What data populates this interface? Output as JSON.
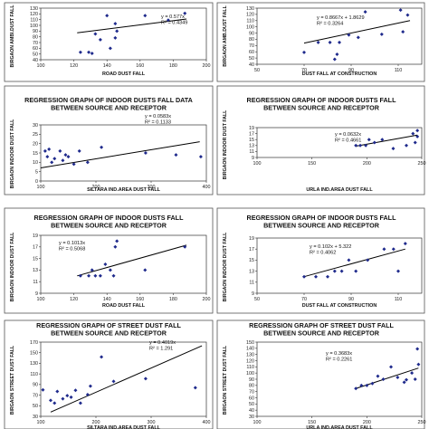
{
  "chart_data": [
    {
      "type": "scatter",
      "title": "",
      "xlabel": "ROAD DUST FALL",
      "ylabel": "BIRGAON AMBI.DUST FALL",
      "xlim": [
        100,
        200
      ],
      "ylim": [
        40,
        130
      ],
      "xticks": [
        "100",
        "120",
        "140",
        "160",
        "180",
        "200"
      ],
      "yticks": [
        "40",
        "50",
        "60",
        "70",
        "80",
        "90",
        "100",
        "110",
        "120",
        "130"
      ],
      "points": [
        [
          124,
          53
        ],
        [
          129,
          53
        ],
        [
          131,
          51
        ],
        [
          133,
          85
        ],
        [
          136,
          75
        ],
        [
          140,
          117
        ],
        [
          142,
          60
        ],
        [
          145,
          78
        ],
        [
          145,
          103
        ],
        [
          146,
          90
        ],
        [
          163,
          117
        ],
        [
          177,
          109
        ],
        [
          187,
          121
        ]
      ],
      "trendline": [
        [
          122,
          87
        ],
        [
          188,
          111
        ]
      ],
      "equation": "y = 0.577x",
      "r2": "R² = 0.4349"
    },
    {
      "type": "scatter",
      "title": "",
      "xlabel": "DUST FALL AT CONSTRUCTION",
      "ylabel": "BIRGAON AMB.DUST FALL",
      "xlim": [
        50,
        120
      ],
      "ylim": [
        40,
        130
      ],
      "xticks": [
        "50",
        "70",
        "90",
        "110"
      ],
      "yticks": [
        "40",
        "50",
        "60",
        "70",
        "80",
        "90",
        "100",
        "110",
        "120",
        "130"
      ],
      "points": [
        [
          70,
          59
        ],
        [
          76,
          75
        ],
        [
          81,
          75
        ],
        [
          83,
          48
        ],
        [
          84,
          56
        ],
        [
          85,
          75
        ],
        [
          89,
          87
        ],
        [
          93,
          83
        ],
        [
          96,
          124
        ],
        [
          103,
          88
        ],
        [
          111,
          127
        ],
        [
          112,
          92
        ],
        [
          114,
          119
        ]
      ],
      "trendline": [
        [
          70,
          74
        ],
        [
          115,
          110
        ]
      ],
      "equation": "y = 0.8667x + 1.8629",
      "r2": "R² = 0.3264"
    },
    {
      "type": "scatter",
      "title": "REGRESSION GRAPH OF INDOOR DUSTS FALL DATA BETWEEN SOURCE AND RECEPTOR",
      "xlabel": "SILTARA IND.AREA DUST FALL",
      "ylabel": "BIRGAON INDOOR DUST FALL",
      "xlim": [
        100,
        400
      ],
      "ylim": [
        0,
        30
      ],
      "xticks": [
        "100",
        "200",
        "300",
        "400"
      ],
      "yticks": [
        "0",
        "5",
        "10",
        "15",
        "20",
        "25",
        "30"
      ],
      "points": [
        [
          108,
          16
        ],
        [
          112,
          13
        ],
        [
          115,
          17
        ],
        [
          120,
          10
        ],
        [
          125,
          12
        ],
        [
          135,
          16
        ],
        [
          140,
          11
        ],
        [
          145,
          14
        ],
        [
          150,
          13
        ],
        [
          160,
          9
        ],
        [
          170,
          16
        ],
        [
          185,
          10
        ],
        [
          210,
          18
        ],
        [
          290,
          15
        ],
        [
          345,
          14
        ],
        [
          390,
          13
        ]
      ],
      "trendline": [
        [
          100,
          7
        ],
        [
          388,
          21
        ]
      ],
      "equation": "y = 0.0583x",
      "r2": "R² = 0.1133"
    },
    {
      "type": "scatter",
      "title": "REGRESSION GRAPH OF INDOOR DUSTS FALL BETWEEN SOURCE AND RECEPTOR",
      "xlabel": "URLA IND.AREA DUST FALL",
      "ylabel": "BIRGAON INDOOR DUST FALL",
      "xlim": [
        100,
        250
      ],
      "ylim": [
        9,
        19
      ],
      "xticks": [
        "100",
        "150",
        "200",
        "250"
      ],
      "yticks": [
        "9",
        "11",
        "13",
        "15",
        "17",
        "19"
      ],
      "points": [
        [
          190,
          13
        ],
        [
          194,
          13
        ],
        [
          199,
          13
        ],
        [
          202,
          15
        ],
        [
          207,
          14
        ],
        [
          214,
          15
        ],
        [
          224,
          12
        ],
        [
          236,
          13
        ],
        [
          242,
          17
        ],
        [
          246,
          18
        ],
        [
          246,
          16
        ],
        [
          244,
          14
        ]
      ],
      "trendline": [
        [
          190,
          12.8
        ],
        [
          246,
          16.5
        ]
      ],
      "equation": "y = 0.0632x",
      "r2": "R² = 0.4661"
    },
    {
      "type": "scatter",
      "title": "REGRESSION GRAPH OF INDOOR DUSTS FALL BETWEEN SOURCE AND RECEPTOR",
      "xlabel": "ROAD DUST FALL",
      "ylabel": "BIRGAON INDOOR DUST FALL",
      "xlim": [
        100,
        200
      ],
      "ylim": [
        9,
        19
      ],
      "xticks": [
        "100",
        "120",
        "140",
        "160",
        "180",
        "200"
      ],
      "yticks": [
        "9",
        "11",
        "13",
        "15",
        "17",
        "19"
      ],
      "points": [
        [
          124,
          12
        ],
        [
          129,
          12
        ],
        [
          131,
          13
        ],
        [
          133,
          12
        ],
        [
          136,
          12
        ],
        [
          139,
          14
        ],
        [
          142,
          13
        ],
        [
          144,
          12
        ],
        [
          145,
          17
        ],
        [
          146,
          18
        ],
        [
          163,
          13
        ],
        [
          187,
          17
        ]
      ],
      "trendline": [
        [
          122,
          12
        ],
        [
          188,
          17.3
        ]
      ],
      "equation": "y = 0.1013x",
      "r2": "R² = 0.5068"
    },
    {
      "type": "scatter",
      "title": "REGRESSION GRAPH OF INDOOR DUSTS FALL BETWEEN SOURCE AND RECEPTOR",
      "xlabel": "DUST FALL AT CONSTRUCTION",
      "ylabel": "BIRGAON INDOOR DUST FALL",
      "xlim": [
        50,
        120
      ],
      "ylim": [
        9,
        19
      ],
      "xticks": [
        "50",
        "70",
        "90",
        "110"
      ],
      "yticks": [
        "9",
        "11",
        "13",
        "15",
        "17",
        "19"
      ],
      "points": [
        [
          70,
          12
        ],
        [
          75,
          12
        ],
        [
          80,
          12
        ],
        [
          83,
          13
        ],
        [
          86,
          13
        ],
        [
          89,
          15
        ],
        [
          92,
          13
        ],
        [
          97,
          15
        ],
        [
          104,
          17
        ],
        [
          108,
          17
        ],
        [
          110,
          13
        ],
        [
          113,
          18
        ]
      ],
      "trendline": [
        [
          70,
          12
        ],
        [
          113,
          17
        ]
      ],
      "equation": "y = 0.102x + 5.322",
      "r2": "R² = 0.4062"
    },
    {
      "type": "scatter",
      "title": "REGRESSION GRAPH OF STREET DUST FALL BETWEEN SOURCE AND RECEPTOR",
      "xlabel": "SILTARA IND.AREA DUST FALL",
      "ylabel": "BIRGAON STREET DUST FALL",
      "xlim": [
        100,
        400
      ],
      "ylim": [
        30,
        170
      ],
      "xticks": [
        "100",
        "200",
        "300",
        "400"
      ],
      "yticks": [
        "30",
        "50",
        "70",
        "90",
        "110",
        "130",
        "150",
        "170"
      ],
      "points": [
        [
          104,
          80
        ],
        [
          118,
          60
        ],
        [
          125,
          55
        ],
        [
          130,
          77
        ],
        [
          140,
          63
        ],
        [
          148,
          69
        ],
        [
          155,
          66
        ],
        [
          163,
          79
        ],
        [
          172,
          55
        ],
        [
          185,
          71
        ],
        [
          190,
          87
        ],
        [
          210,
          142
        ],
        [
          232,
          96
        ],
        [
          290,
          101
        ],
        [
          380,
          84
        ]
      ],
      "trendline": [
        [
          118,
          38
        ],
        [
          392,
          163
        ]
      ],
      "equation": "y = 0.4019x",
      "r2": "R² = 1.291"
    },
    {
      "type": "scatter",
      "title": "REGRESSION GRAPH OF STREET DUST FALL BETWEEN SOURCE AND RECEPTOR",
      "xlabel": "URLA IND.AREA DUST FALL",
      "ylabel": "BIRGAON STREET DUST FALL",
      "xlim": [
        100,
        250
      ],
      "ylim": [
        30,
        150
      ],
      "xticks": [
        "100",
        "150",
        "200",
        "250"
      ],
      "yticks": [
        "30",
        "40",
        "50",
        "60",
        "70",
        "80",
        "90",
        "100",
        "110",
        "120",
        "130",
        "140",
        "150"
      ],
      "points": [
        [
          190,
          75
        ],
        [
          195,
          80
        ],
        [
          200,
          80
        ],
        [
          205,
          83
        ],
        [
          210,
          95
        ],
        [
          215,
          90
        ],
        [
          222,
          110
        ],
        [
          228,
          93
        ],
        [
          234,
          85
        ],
        [
          236,
          89
        ],
        [
          241,
          100
        ],
        [
          244,
          90
        ],
        [
          246,
          139
        ],
        [
          247,
          114
        ]
      ],
      "trendline": [
        [
          190,
          75
        ],
        [
          247,
          108
        ]
      ],
      "equation": "y = 0.3683x",
      "r2": "R² = 0.2261"
    }
  ]
}
